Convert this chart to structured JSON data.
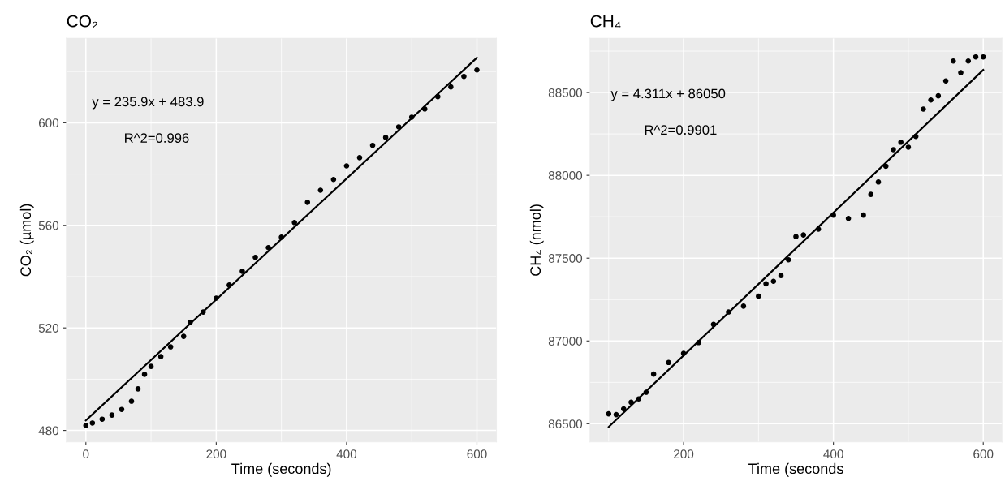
{
  "chart_data": [
    {
      "type": "scatter",
      "title": "CO₂",
      "xlabel": "Time (seconds)",
      "ylabel": "CO₂ (µmol)",
      "annotations": [
        "y = 235.9x + 483.9",
        "R^2=0.996"
      ],
      "xlim": [
        -30,
        630
      ],
      "ylim": [
        475.5,
        633
      ],
      "marker": "circle",
      "xticks": [
        0,
        {
          "value": 100,
          "label": null
        },
        200,
        {
          "value": 300,
          "label": null
        },
        400,
        {
          "value": 500,
          "label": null
        },
        600
      ],
      "yticks": [
        480,
        {
          "value": 500,
          "label": null
        },
        520,
        {
          "value": 540,
          "label": null
        },
        560,
        {
          "value": 580,
          "label": null
        },
        600,
        {
          "value": 620,
          "label": null
        }
      ],
      "grid": true,
      "series": [
        {
          "color": "#000000",
          "x": [
            0,
            10,
            25,
            40,
            55,
            70,
            80,
            90,
            100,
            115,
            130,
            150,
            160,
            180,
            200,
            220,
            240,
            260,
            280,
            300,
            320,
            340,
            360,
            380,
            400,
            420,
            440,
            460,
            480,
            500,
            520,
            540,
            560,
            580,
            600
          ],
          "values": [
            481.9,
            482.9,
            484.4,
            486,
            488.2,
            491.4,
            496.2,
            501.9,
            505,
            508.8,
            512.6,
            516.7,
            522.1,
            526.2,
            531.6,
            536.7,
            542.1,
            547.5,
            551.3,
            555.4,
            561.1,
            569,
            573.7,
            577.9,
            583.2,
            586.4,
            591.2,
            594.3,
            598.4,
            602.2,
            605.4,
            610.2,
            614,
            618.1,
            620.6
          ]
        },
        {
          "type": "line",
          "marker": "none",
          "color": "#000000",
          "x": [
            0,
            600
          ],
          "values": [
            483.9,
            625.4
          ]
        }
      ]
    },
    {
      "type": "scatter",
      "title": "CH₄",
      "xlabel": "Time (seconds",
      "ylabel": "CH₄ (nmol)",
      "annotations": [
        "y = 4.311x + 86050",
        "R^2=0.9901"
      ],
      "xlim": [
        75,
        625
      ],
      "ylim": [
        86390,
        88828
      ],
      "marker": "circle",
      "xticks": [
        {
          "value": 100,
          "label": null
        },
        200,
        {
          "value": 300,
          "label": null
        },
        400,
        {
          "value": 500,
          "label": null
        },
        600
      ],
      "yticks": [
        {
          "value": 86750,
          "label": null
        },
        86500,
        87000,
        {
          "value": 87250,
          "label": null
        },
        87500,
        {
          "value": 87750,
          "label": null
        },
        88000,
        {
          "value": 88250,
          "label": null
        },
        88500,
        {
          "value": 88750,
          "label": null
        }
      ],
      "grid": true,
      "series": [
        {
          "color": "#000000",
          "x": [
            100,
            110,
            120,
            130,
            140,
            150,
            160,
            180,
            200,
            220,
            240,
            260,
            280,
            300,
            310,
            320,
            330,
            340,
            350,
            360,
            380,
            400,
            420,
            440,
            450,
            460,
            470,
            480,
            490,
            500,
            510,
            520,
            530,
            540,
            550,
            560,
            570,
            580,
            590,
            600
          ],
          "values": [
            86560,
            86555,
            86590,
            86630,
            86650,
            86690,
            86800,
            86870,
            86925,
            86990,
            87100,
            87175,
            87210,
            87270,
            87345,
            87360,
            87395,
            87490,
            87630,
            87640,
            87675,
            87760,
            87740,
            87760,
            87885,
            87960,
            88055,
            88155,
            88200,
            88170,
            88235,
            88400,
            88455,
            88480,
            88570,
            88690,
            88620,
            88690,
            88715,
            88715
          ]
        },
        {
          "type": "line",
          "marker": "none",
          "color": "#000000",
          "x": [
            100,
            600
          ],
          "values": [
            86481,
            88637
          ]
        }
      ]
    }
  ]
}
